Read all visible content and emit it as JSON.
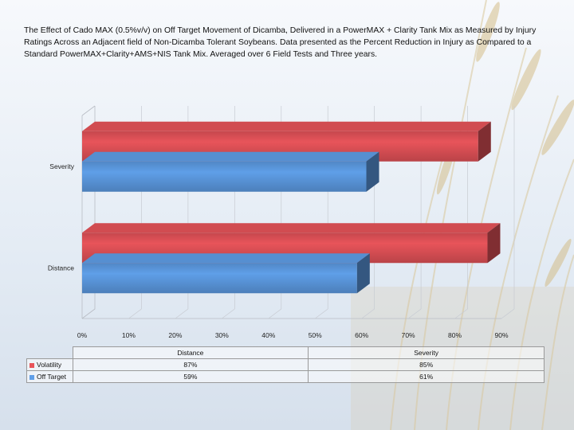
{
  "title": "The Effect of Cado MAX (0.5%v/v) on Off Target Movement of Dicamba, Delivered in a PowerMAX + Clarity Tank Mix as Measured by Injury Ratings Across an Adjacent field of Non-Dicamba Tolerant Soybeans. Data presented as the Percent Reduction in Injury as Compared to a Standard PowerMAX+Clarity+AMS+NIS Tank Mix.  Averaged over 6 Field Tests and Three years.",
  "chart_data": {
    "type": "bar",
    "orientation": "horizontal",
    "categories": [
      "Distance",
      "Severity"
    ],
    "series": [
      {
        "name": "Volatility",
        "values": [
          87,
          85
        ],
        "color": "#e8545a"
      },
      {
        "name": "Off Target",
        "values": [
          59,
          61
        ],
        "color": "#5f9fe8"
      }
    ],
    "xlim": [
      0,
      90
    ],
    "xticks": [
      "0%",
      "10%",
      "20%",
      "30%",
      "40%",
      "50%",
      "60%",
      "70%",
      "80%",
      "90%"
    ],
    "grid": true,
    "legend": "data table below chart",
    "table": {
      "columns": [
        "Distance",
        "Severity"
      ],
      "rows": [
        {
          "label": "Volatility",
          "values": [
            "87%",
            "85%"
          ],
          "color": "#e8545a"
        },
        {
          "label": "Off Target",
          "values": [
            "59%",
            "61%"
          ],
          "color": "#5f9fe8"
        }
      ]
    }
  }
}
